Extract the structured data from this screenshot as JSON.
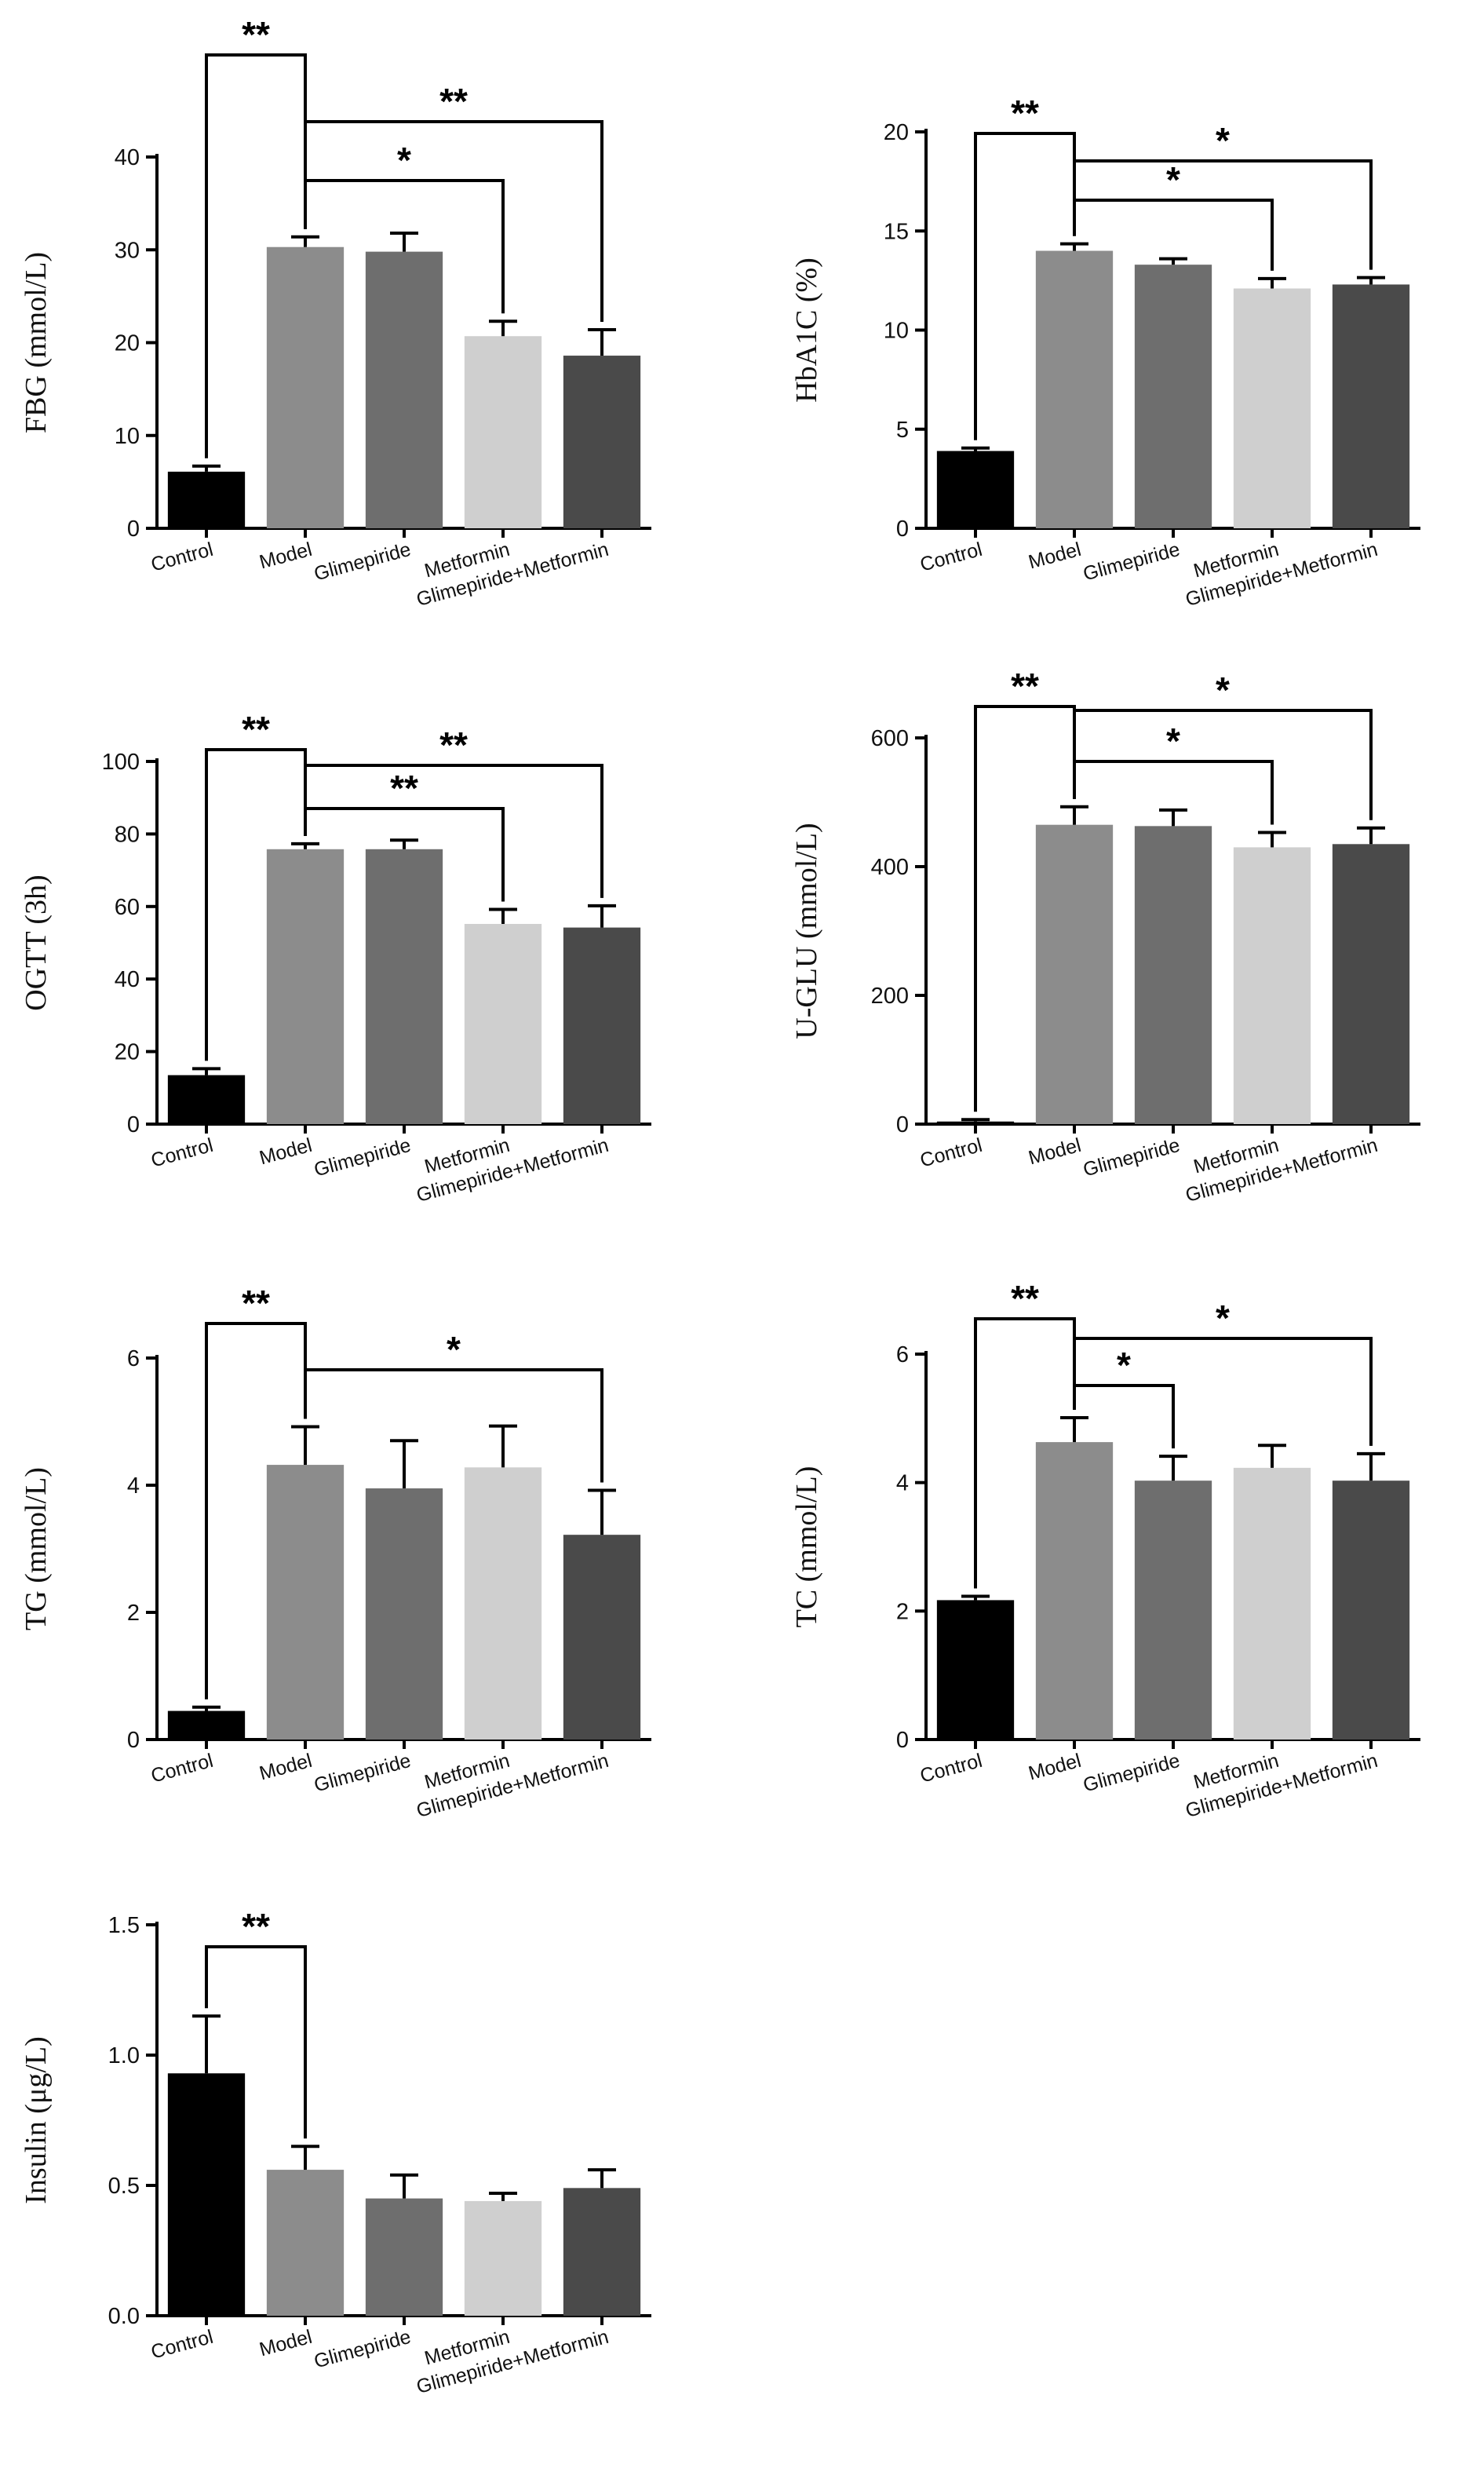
{
  "chart_data": [
    {
      "type": "bar",
      "ylabel": "FBG (mmol/L)",
      "categories": [
        "Control",
        "Model",
        "Glimepiride",
        "Metformin",
        "Glimepiride+Metformin"
      ],
      "values": [
        6.1,
        30.3,
        29.8,
        20.7,
        18.6
      ],
      "errors": [
        0.6,
        1.1,
        2.0,
        1.6,
        2.8
      ],
      "ylim": [
        0,
        40
      ],
      "yticks": [
        0,
        10,
        20,
        30,
        40
      ],
      "colors": [
        "#000000",
        "#8c8c8c",
        "#6e6e6e",
        "#cfcfcf",
        "#4a4a4a"
      ],
      "significance": [
        {
          "from": 0,
          "to": 1,
          "label": "**"
        },
        {
          "from": 1,
          "to": 4,
          "label": "**"
        },
        {
          "from": 1,
          "to": 3,
          "label": "*"
        }
      ]
    },
    {
      "type": "bar",
      "ylabel": "HbA1C (%)",
      "categories": [
        "Control",
        "Model",
        "Glimepiride",
        "Metformin",
        "Glimepiride+Metformin"
      ],
      "values": [
        3.9,
        14.0,
        13.3,
        12.1,
        12.3
      ],
      "errors": [
        0.15,
        0.35,
        0.3,
        0.5,
        0.35
      ],
      "ylim": [
        0,
        20
      ],
      "yticks": [
        0,
        5,
        10,
        15,
        20
      ],
      "colors": [
        "#000000",
        "#8c8c8c",
        "#6e6e6e",
        "#cfcfcf",
        "#4a4a4a"
      ],
      "significance": [
        {
          "from": 0,
          "to": 1,
          "label": "**"
        },
        {
          "from": 1,
          "to": 4,
          "label": "*"
        },
        {
          "from": 1,
          "to": 3,
          "label": "*"
        }
      ]
    },
    {
      "type": "bar",
      "ylabel": "OGTT (3h)",
      "categories": [
        "Control",
        "Model",
        "Glimepiride",
        "Metformin",
        "Glimepiride+Metformin"
      ],
      "values": [
        13.5,
        75.8,
        75.8,
        55.2,
        54.2
      ],
      "errors": [
        1.8,
        1.5,
        2.5,
        4.0,
        6.0
      ],
      "ylim": [
        0,
        100
      ],
      "yticks": [
        0,
        20,
        40,
        60,
        80,
        100
      ],
      "colors": [
        "#000000",
        "#8c8c8c",
        "#6e6e6e",
        "#cfcfcf",
        "#4a4a4a"
      ],
      "significance": [
        {
          "from": 0,
          "to": 1,
          "label": "**"
        },
        {
          "from": 1,
          "to": 4,
          "label": "**"
        },
        {
          "from": 1,
          "to": 3,
          "label": "**"
        }
      ]
    },
    {
      "type": "bar",
      "ylabel": "U-GLU (mmol/L)",
      "categories": [
        "Control",
        "Model",
        "Glimepiride",
        "Metformin",
        "Glimepiride+Metformin"
      ],
      "values": [
        4,
        465,
        463,
        430,
        435
      ],
      "errors": [
        3,
        28,
        25,
        23,
        25
      ],
      "ylim": [
        0,
        600
      ],
      "yticks": [
        0,
        200,
        400,
        600
      ],
      "colors": [
        "#000000",
        "#8c8c8c",
        "#6e6e6e",
        "#cfcfcf",
        "#4a4a4a"
      ],
      "significance": [
        {
          "from": 0,
          "to": 1,
          "label": "**"
        },
        {
          "from": 1,
          "to": 4,
          "label": "*"
        },
        {
          "from": 1,
          "to": 3,
          "label": "*"
        }
      ]
    },
    {
      "type": "bar",
      "ylabel": "TG (mmol/L)",
      "categories": [
        "Control",
        "Model",
        "Glimepiride",
        "Metformin",
        "Glimepiride+Metformin"
      ],
      "values": [
        0.45,
        4.32,
        3.95,
        4.28,
        3.22
      ],
      "errors": [
        0.06,
        0.6,
        0.75,
        0.65,
        0.7
      ],
      "ylim": [
        0,
        6
      ],
      "yticks": [
        0,
        2,
        4,
        6
      ],
      "colors": [
        "#000000",
        "#8c8c8c",
        "#6e6e6e",
        "#cfcfcf",
        "#4a4a4a"
      ],
      "significance": [
        {
          "from": 0,
          "to": 1,
          "label": "**"
        },
        {
          "from": 1,
          "to": 4,
          "label": "*"
        }
      ]
    },
    {
      "type": "bar",
      "ylabel": "TC (mmol/L)",
      "categories": [
        "Control",
        "Model",
        "Glimepiride",
        "Metformin",
        "Glimepiride+Metformin"
      ],
      "values": [
        2.17,
        4.63,
        4.03,
        4.23,
        4.03
      ],
      "errors": [
        0.06,
        0.38,
        0.38,
        0.35,
        0.42
      ],
      "ylim": [
        0,
        6
      ],
      "yticks": [
        0,
        2,
        4,
        6
      ],
      "colors": [
        "#000000",
        "#8c8c8c",
        "#6e6e6e",
        "#cfcfcf",
        "#4a4a4a"
      ],
      "significance": [
        {
          "from": 0,
          "to": 1,
          "label": "**"
        },
        {
          "from": 1,
          "to": 4,
          "label": "*"
        },
        {
          "from": 1,
          "to": 2,
          "label": "*"
        }
      ]
    },
    {
      "type": "bar",
      "ylabel": "Insulin (μg/L)",
      "categories": [
        "Control",
        "Model",
        "Glimepiride",
        "Metformin",
        "Glimepiride+Metformin"
      ],
      "values": [
        0.93,
        0.56,
        0.45,
        0.44,
        0.49
      ],
      "errors": [
        0.22,
        0.09,
        0.09,
        0.03,
        0.07
      ],
      "ylim": [
        0,
        1.5
      ],
      "yticks": [
        "0.0",
        "0.5",
        "1.0",
        "1.5"
      ],
      "colors": [
        "#000000",
        "#8c8c8c",
        "#6e6e6e",
        "#cfcfcf",
        "#4a4a4a"
      ],
      "significance": [
        {
          "from": 0,
          "to": 1,
          "label": "**"
        }
      ]
    }
  ]
}
